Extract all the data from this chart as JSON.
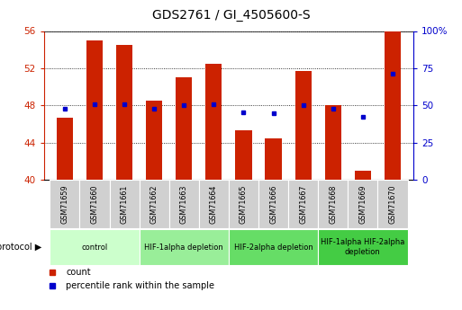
{
  "title": "GDS2761 / GI_4505600-S",
  "samples": [
    "GSM71659",
    "GSM71660",
    "GSM71661",
    "GSM71662",
    "GSM71663",
    "GSM71664",
    "GSM71665",
    "GSM71666",
    "GSM71667",
    "GSM71668",
    "GSM71669",
    "GSM71670"
  ],
  "counts": [
    46.7,
    55.0,
    54.5,
    48.5,
    51.0,
    52.5,
    45.3,
    44.5,
    51.7,
    48.0,
    41.0,
    56.0
  ],
  "percentiles": [
    47.5,
    51.0,
    51.0,
    48.0,
    50.0,
    50.5,
    45.5,
    45.0,
    50.0,
    48.0,
    42.3,
    71.5
  ],
  "ymin": 40,
  "ymax": 56,
  "yticks": [
    40,
    44,
    48,
    52,
    56
  ],
  "y2ticks": [
    0,
    25,
    50,
    75,
    100
  ],
  "bar_color": "#cc2200",
  "dot_color": "#0000cc",
  "left_axis_color": "#cc2200",
  "right_axis_color": "#0000cc",
  "bar_width": 0.55,
  "protocol_groups": [
    {
      "label": "control",
      "start": 0,
      "end": 2,
      "color": "#ccffcc"
    },
    {
      "label": "HIF-1alpha depletion",
      "start": 3,
      "end": 5,
      "color": "#99ee99"
    },
    {
      "label": "HIF-2alpha depletion",
      "start": 6,
      "end": 8,
      "color": "#66dd66"
    },
    {
      "label": "HIF-1alpha HIF-2alpha\ndepletion",
      "start": 9,
      "end": 11,
      "color": "#44cc44"
    }
  ]
}
